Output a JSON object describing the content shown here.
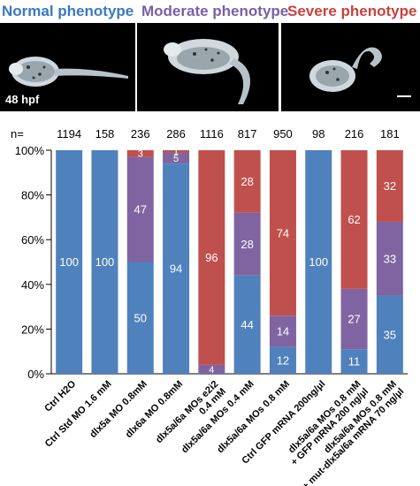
{
  "phenotypes": [
    {
      "label": "Normal phenotype",
      "color": "#3a78c2"
    },
    {
      "label": "Moderate phenotype",
      "color": "#7b5ea8"
    },
    {
      "label": "Severe phenotype",
      "color": "#c8423f"
    }
  ],
  "stage_label": "48 hpf",
  "chart_data": {
    "type": "bar",
    "stacked": true,
    "percent": true,
    "n_label": "n=",
    "n": [
      1194,
      158,
      236,
      286,
      1116,
      817,
      950,
      98,
      216,
      181
    ],
    "categories": [
      [
        "Ctrl H2O"
      ],
      [
        "Ctrl Std MO 1.6 mM"
      ],
      [
        "dlx5a MO 0.8mM"
      ],
      [
        "dlx6a MO 0.8mM"
      ],
      [
        "dlx5a/6a MOs e2i2",
        "0.4 mM"
      ],
      [
        "dlx5a/6a MOs 0.4 mM"
      ],
      [
        "dlx5a/6a MOs 0.8 mM"
      ],
      [
        "Ctrl GFP mRNA 200ng/µl"
      ],
      [
        "dlx5a/6a MOs 0.8 mM",
        "+ GFP mRNA 200 ng/µl"
      ],
      [
        "dlx5a/6a MOs 0.8 mM",
        "+ mut-dlx5a/6a mRNA 70 ng/µl"
      ]
    ],
    "series": [
      {
        "values": [
          100,
          100,
          50,
          94,
          0,
          44,
          12,
          100,
          11,
          35
        ],
        "color": "#4f81bd",
        "labels": [
          "100",
          "100",
          "50",
          "94",
          "",
          "44",
          "12",
          "100",
          "11",
          "35"
        ]
      },
      {
        "values": [
          0,
          0,
          47,
          5,
          4,
          28,
          14,
          0,
          27,
          33
        ],
        "color": "#8064a2",
        "labels": [
          "",
          "",
          "47",
          "5",
          "4",
          "28",
          "14",
          "",
          "27",
          "33"
        ]
      },
      {
        "values": [
          0,
          0,
          3,
          1,
          96,
          28,
          74,
          0,
          62,
          32
        ],
        "color": "#c0504d",
        "labels": [
          "",
          "",
          "3",
          "1",
          "96",
          "28",
          "74",
          "",
          "62",
          "32"
        ]
      }
    ],
    "yticks": [
      "0%",
      "20%",
      "40%",
      "60%",
      "80%",
      "100%"
    ],
    "ylim": [
      0,
      100
    ]
  }
}
